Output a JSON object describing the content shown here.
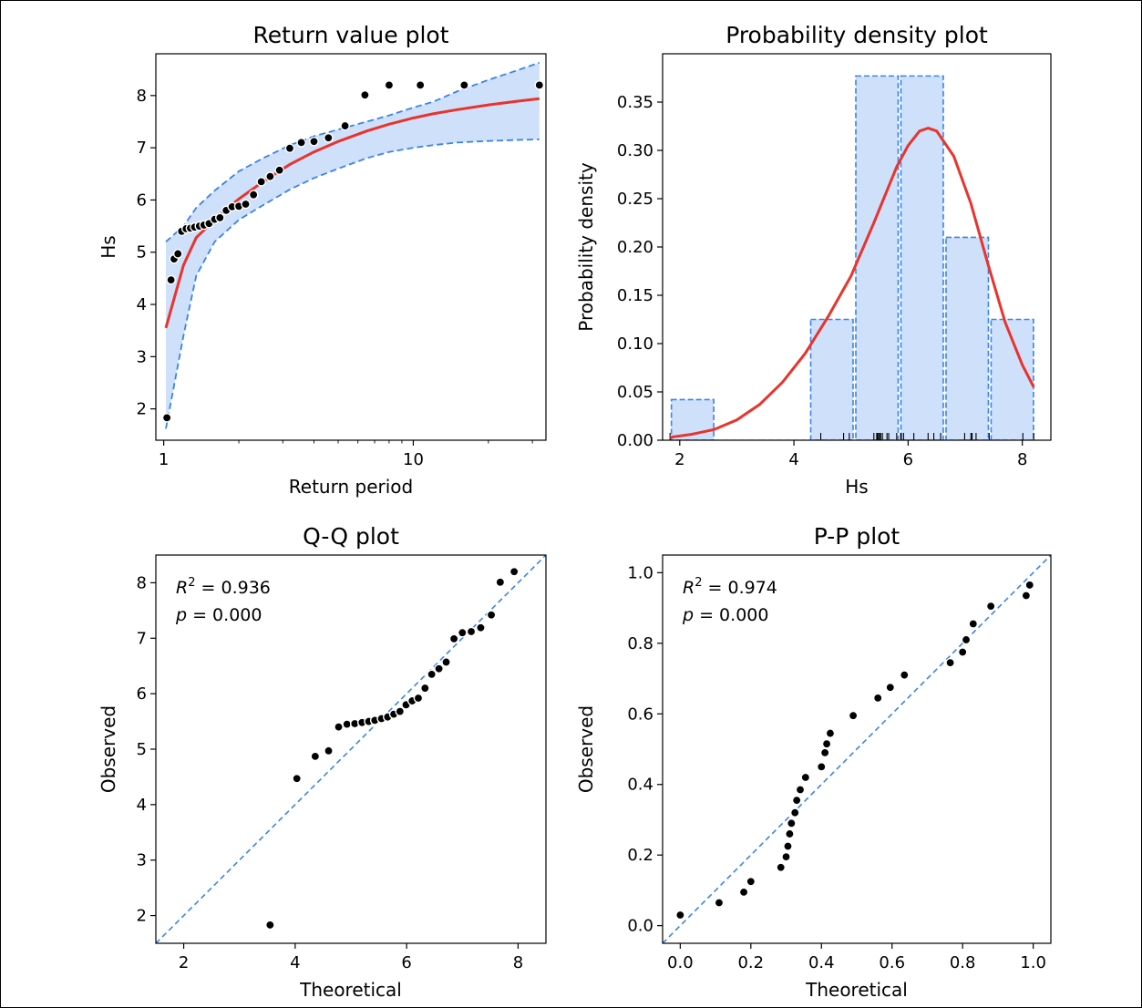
{
  "chart_data": [
    {
      "type": "scatter",
      "title": "Return value plot",
      "xlabel": "Return period",
      "ylabel": "Hs",
      "xscale": "log",
      "xlim": [
        0.93,
        34
      ],
      "ylim": [
        1.4,
        8.8
      ],
      "xticks": [
        1,
        10
      ],
      "yticks": [
        2,
        3,
        4,
        5,
        6,
        7,
        8
      ],
      "grid": false,
      "colors": {
        "points": "#000000",
        "fit": "#e8342c",
        "ci_line": "#3b84e8",
        "ci_fill": "#cfe0fb"
      },
      "fit_curve": {
        "x": [
          1.02,
          1.2,
          1.35,
          1.6,
          2.0,
          2.5,
          3.2,
          4.0,
          5.0,
          6.5,
          8.0,
          10.0,
          12.0,
          15.0,
          20.0,
          26.0,
          32.0
        ],
        "y": [
          3.55,
          4.75,
          5.28,
          5.62,
          6.02,
          6.35,
          6.68,
          6.92,
          7.12,
          7.32,
          7.45,
          7.57,
          7.65,
          7.73,
          7.82,
          7.89,
          7.94
        ]
      },
      "ci_upper": {
        "x": [
          1.02,
          1.2,
          1.35,
          1.6,
          2.0,
          2.5,
          3.2,
          4.0,
          5.0,
          6.5,
          8.0,
          10.0,
          12.0,
          15.0,
          20.0,
          26.0,
          32.0
        ],
        "y": [
          5.2,
          5.5,
          5.85,
          6.18,
          6.55,
          6.8,
          7.05,
          7.22,
          7.35,
          7.5,
          7.62,
          7.77,
          7.88,
          8.08,
          8.3,
          8.48,
          8.63
        ]
      },
      "ci_lower": {
        "x": [
          1.02,
          1.2,
          1.35,
          1.6,
          2.0,
          2.5,
          3.2,
          4.0,
          5.0,
          6.5,
          8.0,
          10.0,
          12.0,
          15.0,
          20.0,
          26.0,
          32.0
        ],
        "y": [
          1.62,
          3.4,
          4.55,
          5.2,
          5.62,
          5.9,
          6.2,
          6.42,
          6.6,
          6.8,
          6.92,
          7.0,
          7.05,
          7.1,
          7.13,
          7.15,
          7.16
        ]
      },
      "points": {
        "x": [
          1.03,
          1.07,
          1.1,
          1.14,
          1.18,
          1.23,
          1.28,
          1.33,
          1.39,
          1.45,
          1.52,
          1.6,
          1.68,
          1.78,
          1.88,
          2.0,
          2.13,
          2.29,
          2.46,
          2.67,
          2.91,
          3.2,
          3.56,
          4.0,
          4.57,
          5.33,
          6.4,
          8.0,
          10.67,
          16.0,
          32.0
        ],
        "y": [
          1.83,
          4.47,
          4.87,
          4.97,
          5.4,
          5.45,
          5.46,
          5.48,
          5.5,
          5.52,
          5.55,
          5.63,
          5.66,
          5.8,
          5.87,
          5.88,
          5.92,
          6.1,
          6.35,
          6.45,
          6.57,
          6.99,
          7.1,
          7.12,
          7.19,
          7.42,
          8.01,
          8.2,
          8.2,
          8.2,
          8.2
        ]
      }
    },
    {
      "type": "bar",
      "title": "Probability density plot",
      "xlabel": "Hs",
      "ylabel": "Probability density",
      "xlim": [
        1.7,
        8.5
      ],
      "ylim": [
        0,
        0.4
      ],
      "xticks": [
        2,
        4,
        6,
        8
      ],
      "yticks": [
        "0.00",
        "0.05",
        "0.10",
        "0.15",
        "0.20",
        "0.25",
        "0.30",
        "0.35"
      ],
      "grid": false,
      "colors": {
        "bar_fill": "#cfe0fb",
        "bar_edge": "#3b84e8",
        "pdf": "#e8342c",
        "rug": "#000000"
      },
      "bins": [
        {
          "left": 1.83,
          "right": 2.62,
          "value": 0.042
        },
        {
          "left": 2.62,
          "right": 3.41,
          "value": 0.0
        },
        {
          "left": 3.41,
          "right": 4.2,
          "value": 0.0
        },
        {
          "left": 4.27,
          "right": 5.06,
          "value": 0.125
        },
        {
          "left": 5.06,
          "right": 5.85,
          "value": 0.377
        },
        {
          "left": 5.85,
          "right": 6.64,
          "value": 0.377
        },
        {
          "left": 6.64,
          "right": 7.43,
          "value": 0.21
        },
        {
          "left": 7.43,
          "right": 8.22,
          "value": 0.125
        }
      ],
      "pdf_curve": {
        "x": [
          1.83,
          2.2,
          2.6,
          3.0,
          3.4,
          3.8,
          4.2,
          4.6,
          5.0,
          5.4,
          5.8,
          6.0,
          6.2,
          6.35,
          6.5,
          6.8,
          7.1,
          7.4,
          7.7,
          8.0,
          8.2
        ],
        "y": [
          0.003,
          0.006,
          0.011,
          0.021,
          0.037,
          0.06,
          0.09,
          0.128,
          0.17,
          0.225,
          0.283,
          0.305,
          0.32,
          0.323,
          0.32,
          0.294,
          0.245,
          0.182,
          0.122,
          0.078,
          0.055
        ]
      },
      "rug": [
        1.83,
        4.47,
        4.87,
        4.97,
        5.4,
        5.45,
        5.46,
        5.48,
        5.5,
        5.52,
        5.55,
        5.63,
        5.66,
        5.8,
        5.87,
        5.88,
        5.92,
        6.1,
        6.35,
        6.45,
        6.57,
        6.99,
        7.1,
        7.12,
        7.19,
        7.42,
        8.01,
        8.2
      ]
    },
    {
      "type": "scatter",
      "title": "Q-Q plot",
      "xlabel": "Theoretical",
      "ylabel": "Observed",
      "xlim": [
        1.5,
        8.5
      ],
      "ylim": [
        1.5,
        8.5
      ],
      "xticks": [
        2,
        4,
        6,
        8
      ],
      "yticks": [
        2,
        3,
        4,
        5,
        6,
        7,
        8
      ],
      "grid": false,
      "annotation": {
        "r2_symbol": "R",
        "r2_sup": "2",
        "r2_text": " = 0.936",
        "p_symbol": "p",
        "p_text": " = 0.000"
      },
      "colors": {
        "points": "#000000",
        "reference": "#3b84e8"
      },
      "reference_line": {
        "x": [
          1.5,
          8.5
        ],
        "y": [
          1.5,
          8.5
        ]
      },
      "points": {
        "x": [
          3.55,
          4.03,
          4.36,
          4.6,
          4.78,
          4.93,
          5.07,
          5.2,
          5.32,
          5.43,
          5.55,
          5.66,
          5.77,
          5.88,
          5.99,
          6.1,
          6.21,
          6.33,
          6.45,
          6.58,
          6.71,
          6.85,
          7.0,
          7.16,
          7.33,
          7.52,
          7.68,
          7.93
        ],
        "y": [
          1.83,
          4.47,
          4.87,
          4.97,
          5.4,
          5.45,
          5.46,
          5.48,
          5.5,
          5.52,
          5.55,
          5.58,
          5.63,
          5.68,
          5.8,
          5.87,
          5.92,
          6.1,
          6.35,
          6.45,
          6.57,
          6.99,
          7.1,
          7.12,
          7.19,
          7.42,
          8.01,
          8.2
        ]
      }
    },
    {
      "type": "scatter",
      "title": "P-P plot",
      "xlabel": "Theoretical",
      "ylabel": "Observed",
      "xlim": [
        -0.05,
        1.05
      ],
      "ylim": [
        -0.05,
        1.05
      ],
      "xticks": [
        "0.0",
        "0.2",
        "0.4",
        "0.6",
        "0.8",
        "1.0"
      ],
      "yticks": [
        "0.0",
        "0.2",
        "0.4",
        "0.6",
        "0.8",
        "1.0"
      ],
      "grid": false,
      "annotation": {
        "r2_symbol": "R",
        "r2_sup": "2",
        "r2_text": " = 0.974",
        "p_symbol": "p",
        "p_text": " = 0.000"
      },
      "colors": {
        "points": "#000000",
        "reference": "#3b84e8"
      },
      "reference_line": {
        "x": [
          -0.05,
          1.05
        ],
        "y": [
          -0.05,
          1.05
        ]
      },
      "points": {
        "x": [
          0.0,
          0.11,
          0.18,
          0.2,
          0.285,
          0.3,
          0.305,
          0.31,
          0.315,
          0.325,
          0.33,
          0.34,
          0.355,
          0.4,
          0.41,
          0.415,
          0.425,
          0.49,
          0.56,
          0.595,
          0.635,
          0.765,
          0.8,
          0.81,
          0.83,
          0.88,
          0.98,
          0.99
        ],
        "y": [
          0.03,
          0.065,
          0.095,
          0.125,
          0.165,
          0.195,
          0.225,
          0.26,
          0.29,
          0.32,
          0.355,
          0.385,
          0.42,
          0.45,
          0.49,
          0.515,
          0.545,
          0.595,
          0.645,
          0.675,
          0.71,
          0.745,
          0.775,
          0.81,
          0.855,
          0.905,
          0.935,
          0.965
        ]
      }
    }
  ]
}
